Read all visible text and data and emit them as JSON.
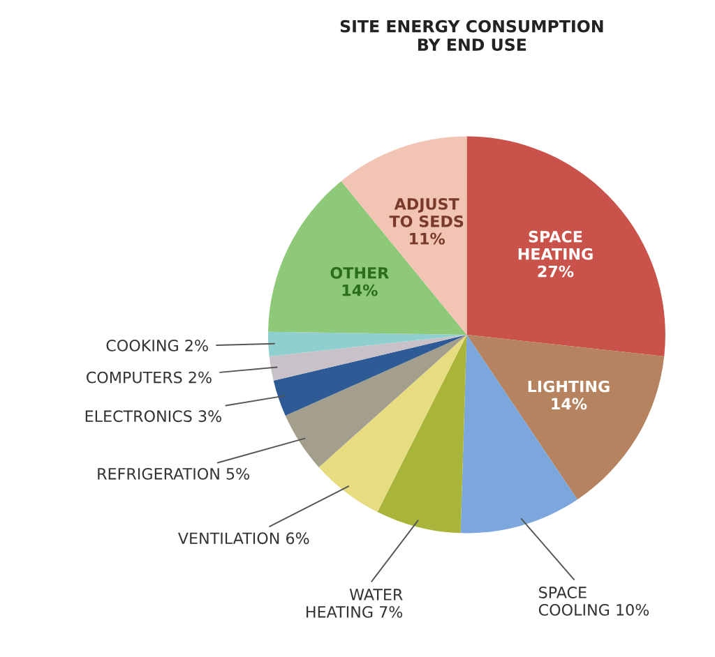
{
  "chart_data": {
    "type": "pie",
    "title": "SITE ENERGY CONSUMPTION\nBY END USE",
    "categories": [
      "SPACE\nHEATING",
      "LIGHTING",
      "SPACE\nCOOLING",
      "WATER\nHEATING",
      "VENTILATION",
      "REFRIGERATION",
      "ELECTRONICS",
      "COMPUTERS",
      "COOKING",
      "OTHER",
      "ADJUST\nTO SEDS"
    ],
    "values": [
      27,
      14,
      10,
      7,
      6,
      5,
      3,
      2,
      2,
      14,
      11
    ],
    "value_labels": [
      "27%",
      "14%",
      "10%",
      "7%",
      "6%",
      "5%",
      "3%",
      "2%",
      "2%",
      "14%",
      "11%"
    ],
    "colors": [
      "#c9534a",
      "#b5835f",
      "#7ba7dc",
      "#a8b53a",
      "#e8dc80",
      "#a39f8c",
      "#2e5a96",
      "#c8c2c8",
      "#8fcfcf",
      "#8ec97a",
      "#f1c4b4"
    ]
  }
}
